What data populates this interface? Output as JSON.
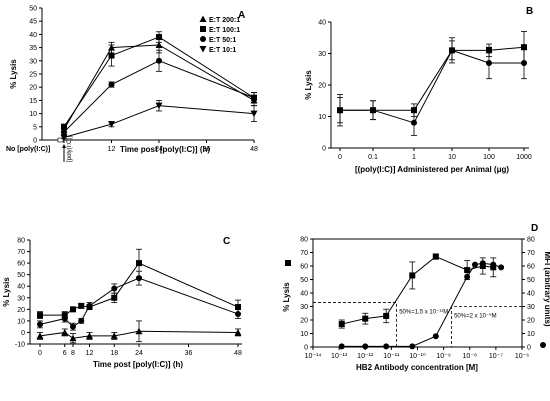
{
  "chart_data": [
    {
      "panel": "A",
      "type": "line",
      "xlabel": "Time post [poly(I:C)] (h)",
      "ylabel": "% Lysis",
      "ylim": [
        0,
        50
      ],
      "xlim": [
        0,
        48
      ],
      "xticks": [
        0,
        12,
        24,
        36,
        48
      ],
      "xtick_labels": [
        "0",
        "12",
        "24",
        "36",
        "48"
      ],
      "yticks": [
        0,
        5,
        10,
        15,
        20,
        25,
        30,
        35,
        40,
        45,
        50
      ],
      "x_extra_labels": [
        "No [poly(I:C)]",
        "[poly(I:C)]"
      ],
      "legend_position": "top-right",
      "series": [
        {
          "name": "E:T 200:1",
          "marker": "triangle-up",
          "x": [
            0,
            12,
            24,
            48
          ],
          "y": [
            4,
            35,
            36,
            15
          ],
          "err": [
            1,
            2,
            3,
            2
          ]
        },
        {
          "name": "E:T 100:1",
          "marker": "square",
          "x": [
            0,
            12,
            24,
            48
          ],
          "y": [
            5,
            32,
            39,
            16
          ],
          "err": [
            1,
            4,
            2,
            2
          ]
        },
        {
          "name": "E:T 50:1",
          "marker": "circle",
          "x": [
            0,
            12,
            24,
            48
          ],
          "y": [
            3,
            21,
            30,
            16
          ],
          "err": [
            1,
            1,
            4,
            2
          ]
        },
        {
          "name": "E:T 10:1",
          "marker": "triangle-down",
          "x": [
            0,
            12,
            24,
            48
          ],
          "y": [
            1,
            6,
            13,
            10
          ],
          "err": [
            0.5,
            1,
            2,
            3
          ]
        }
      ]
    },
    {
      "panel": "B",
      "type": "line",
      "xlabel": "[(poly(I:C)] Administered per Animal (μg)",
      "ylabel": "% Lysis",
      "ylim": [
        0,
        40
      ],
      "xscale": "log-categorical",
      "xtick_labels": [
        "0",
        "0.1",
        "1",
        "10",
        "100",
        "1000"
      ],
      "yticks": [
        0,
        10,
        20,
        30,
        40
      ],
      "series": [
        {
          "name": "",
          "marker": "square",
          "x": [
            "0",
            "0.1",
            "1",
            "10",
            "100",
            "1000"
          ],
          "y": [
            12,
            12,
            12,
            31,
            31,
            32
          ],
          "err": [
            4,
            3,
            2,
            3,
            2,
            5
          ]
        },
        {
          "name": "",
          "marker": "circle",
          "x": [
            "0",
            "0.1",
            "1",
            "10",
            "100",
            "1000"
          ],
          "y": [
            12,
            12,
            8,
            31,
            27,
            27
          ],
          "err": [
            5,
            3,
            4,
            4,
            5,
            5
          ]
        }
      ]
    },
    {
      "panel": "C",
      "type": "line",
      "xlabel": "Time post [poly(I:C)] (h)",
      "ylabel": "% Lysis",
      "ylim": [
        -10,
        80
      ],
      "xlim": [
        0,
        48
      ],
      "xticks": [
        0,
        6,
        8,
        12,
        18,
        24,
        36,
        48
      ],
      "xtick_labels": [
        "0",
        "6",
        "8",
        "12",
        "18",
        "24",
        "36",
        "48"
      ],
      "yticks": [
        -10,
        0,
        10,
        20,
        30,
        40,
        50,
        60,
        70,
        80
      ],
      "series": [
        {
          "name": "",
          "marker": "square",
          "x": [
            0,
            6,
            8,
            10,
            12,
            18,
            24,
            48
          ],
          "y": [
            15,
            15,
            20,
            23,
            22,
            30,
            60,
            22
          ],
          "err": [
            3,
            3,
            2,
            2,
            2,
            4,
            12,
            6
          ]
        },
        {
          "name": "",
          "marker": "circle",
          "x": [
            0,
            6,
            8,
            10,
            12,
            18,
            24,
            48
          ],
          "y": [
            7,
            12,
            5,
            10,
            23,
            38,
            47,
            16
          ],
          "err": [
            3,
            3,
            3,
            2,
            3,
            4,
            6,
            4
          ]
        },
        {
          "name": "",
          "marker": "triangle-up",
          "x": [
            0,
            6,
            8,
            12,
            18,
            24,
            48
          ],
          "y": [
            -3,
            0,
            -5,
            -3,
            -3,
            1,
            0
          ],
          "err": [
            3,
            3,
            4,
            3,
            3,
            9,
            3
          ]
        }
      ]
    },
    {
      "panel": "D",
      "type": "line",
      "xlabel": "HB2 Antibody concentration [M]",
      "ylabel": "% Lysis",
      "y2label": "MFI (arbitrary units)",
      "xscale": "log",
      "xlim": [
        -14,
        -6
      ],
      "xticks": [
        -14,
        -13,
        -12,
        -11,
        -10,
        -9,
        -8,
        -7,
        -6
      ],
      "xtick_labels": [
        "10⁻¹⁴",
        "10⁻¹³",
        "10⁻¹²",
        "10⁻¹¹",
        "10⁻¹⁰",
        "10⁻⁹",
        "10⁻⁸",
        "10⁻⁷",
        "10⁻⁶"
      ],
      "ylim": [
        0,
        80
      ],
      "yticks": [
        0,
        10,
        20,
        30,
        40,
        50,
        60,
        70,
        80
      ],
      "y2lim": [
        0,
        80
      ],
      "y2ticks": [
        0,
        10,
        20,
        30,
        40,
        50,
        60,
        70,
        80
      ],
      "annotations": [
        "50%=1.5 x 10⁻¹¹M",
        "50%=2 x 10⁻⁹M"
      ],
      "series": [
        {
          "name": "",
          "axis": "left",
          "marker": "square",
          "x": [
            -12.9,
            -12,
            -11.2,
            -10.2,
            -9.3,
            -8.1,
            -7.5,
            -7.1
          ],
          "y": [
            17,
            21,
            23,
            53,
            67,
            57,
            60,
            59
          ],
          "err": [
            3,
            4,
            5,
            10,
            2,
            7,
            6,
            7
          ]
        },
        {
          "name": "",
          "axis": "right",
          "marker": "circle",
          "x": [
            -12.9,
            -12,
            -11.2,
            -10.2,
            -9.3,
            -8.1,
            -7.8,
            -7.5,
            -7.1,
            -6.8
          ],
          "y": [
            0.5,
            0.5,
            0.5,
            0.5,
            8,
            52,
            61,
            62,
            61,
            59
          ],
          "err": []
        }
      ]
    }
  ],
  "panels": {
    "A": {
      "label": "A"
    },
    "B": {
      "label": "B"
    },
    "C": {
      "label": "C"
    },
    "D": {
      "label": "D"
    }
  }
}
